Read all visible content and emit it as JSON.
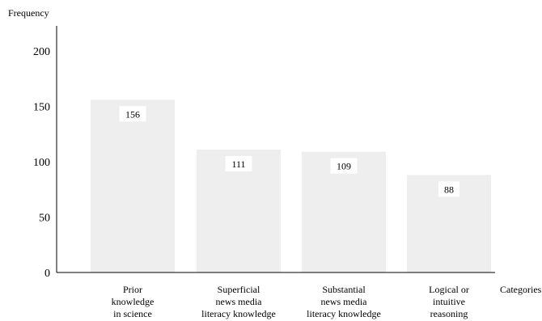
{
  "chart_data": {
    "type": "bar",
    "xlabel": "Categories",
    "ylabel": "Frequency",
    "categories": [
      [
        "Prior",
        "knowledge",
        "in science"
      ],
      [
        "Superficial",
        "news media",
        "literacy knowledge"
      ],
      [
        "Substantial",
        "news media",
        "literacy knowledge"
      ],
      [
        "Logical or",
        "intuitive",
        "reasoning"
      ]
    ],
    "values": [
      156,
      111,
      109,
      88
    ],
    "data_labels": [
      "156",
      "111",
      "109",
      "88"
    ],
    "y_ticks": [
      0,
      50,
      100,
      150,
      200
    ],
    "ylim": [
      0,
      225
    ],
    "bar_color": "#eeeeee",
    "grid": false
  }
}
